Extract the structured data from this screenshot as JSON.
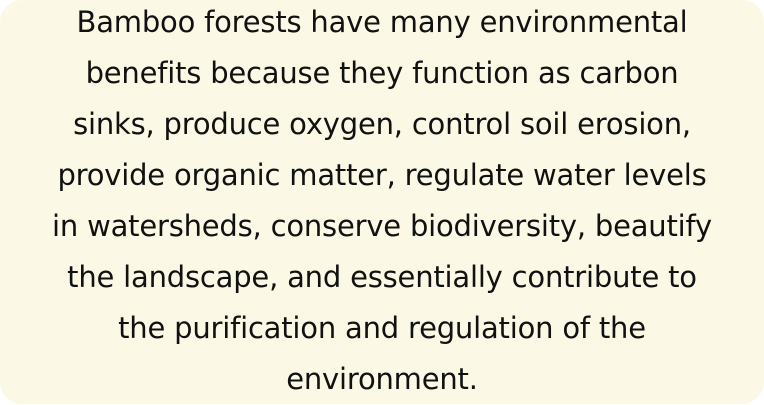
{
  "card": {
    "background_color": "#fbf9e6",
    "text_color": "#111111",
    "lines": [
      "Bamboo forests have many environmental",
      "benefits because they function as carbon",
      "sinks, produce oxygen, control soil erosion,",
      "provide organic matter, regulate water levels",
      "in watersheds, conserve biodiversity, beautify",
      "the landscape, and essentially contribute to",
      "the purification and regulation of the",
      "environment."
    ]
  }
}
